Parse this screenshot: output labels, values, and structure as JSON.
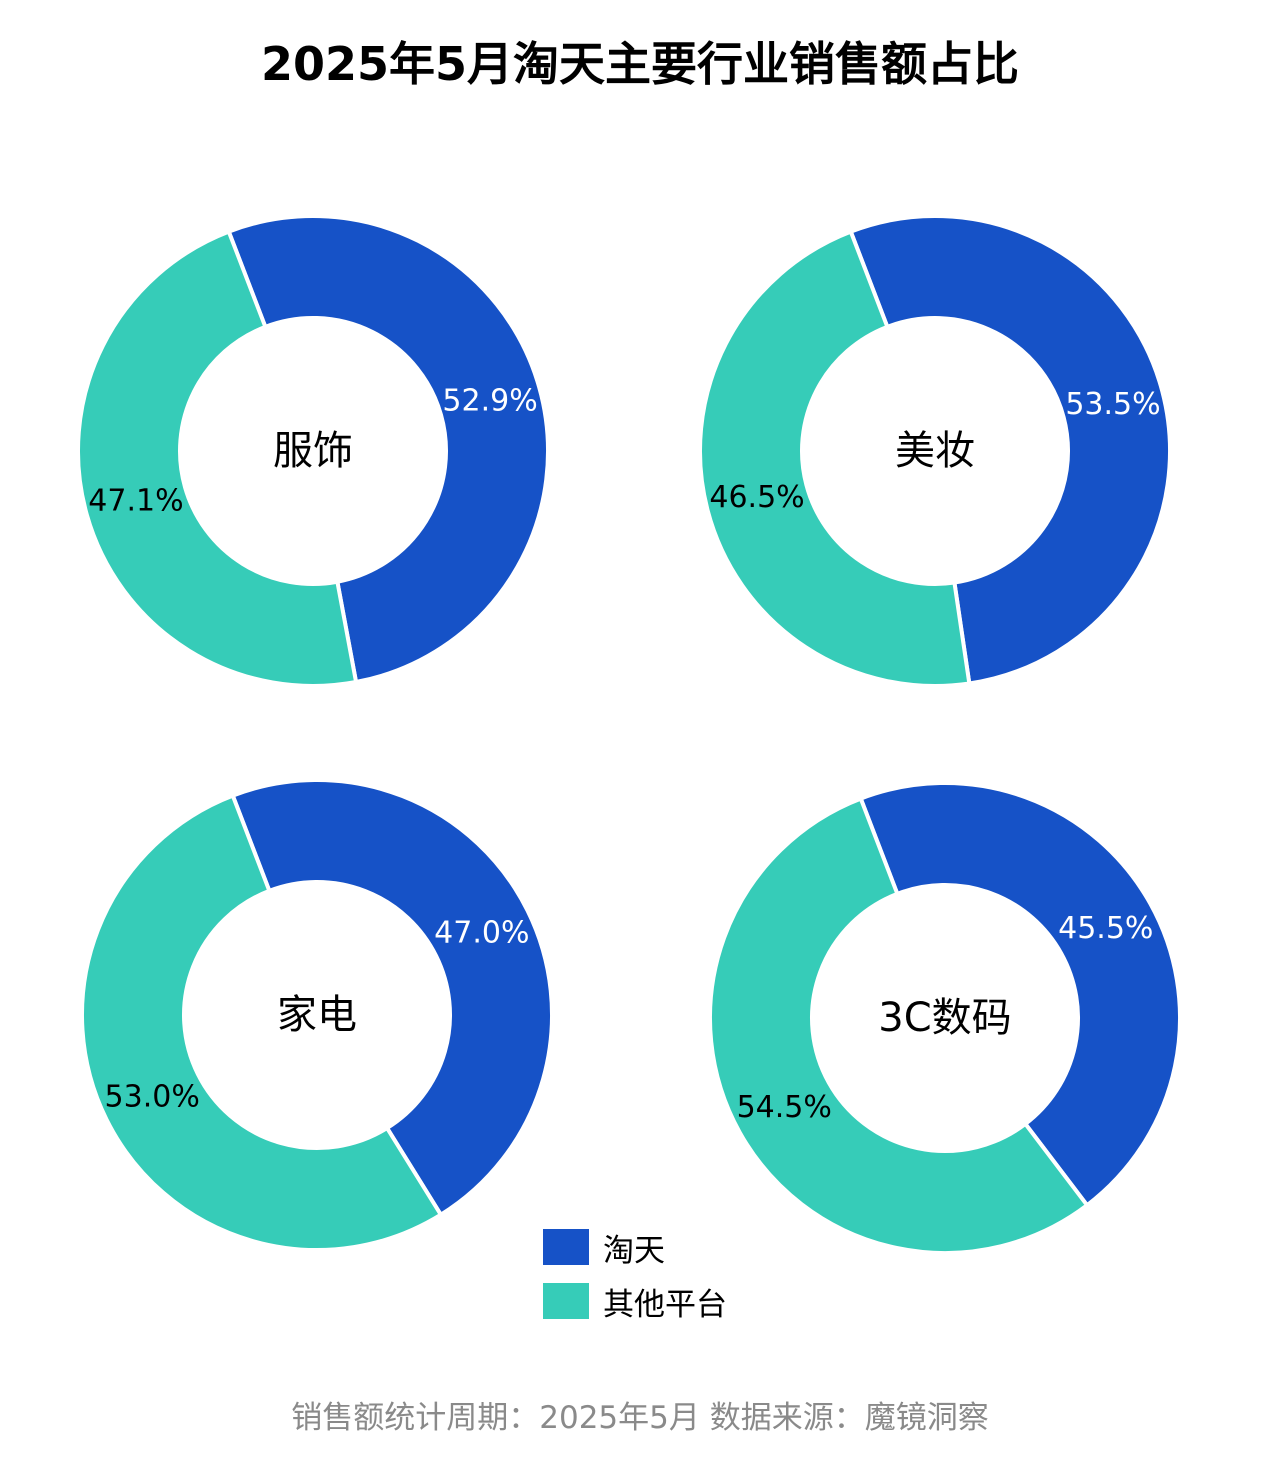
{
  "chart_data": {
    "type": "pie",
    "title": "2025年5月淘天主要行业销售额占比",
    "series": [
      {
        "name": "淘天",
        "color": "#1652c7"
      },
      {
        "name": "其他平台",
        "color": "#36ccb8"
      }
    ],
    "charts": [
      {
        "category": "服饰",
        "values": [
          52.9,
          47.1
        ],
        "labels": [
          "52.9%",
          "47.1%"
        ]
      },
      {
        "category": "美妆",
        "values": [
          53.5,
          46.5
        ],
        "labels": [
          "53.5%",
          "46.5%"
        ]
      },
      {
        "category": "家电",
        "values": [
          47.0,
          53.0
        ],
        "labels": [
          "47.0%",
          "53.0%"
        ]
      },
      {
        "category": "3C数码",
        "values": [
          45.5,
          54.5
        ],
        "labels": [
          "45.5%",
          "54.5%"
        ]
      }
    ],
    "footer": "销售额统计周期：2025年5月 数据来源：魔镜洞察"
  }
}
